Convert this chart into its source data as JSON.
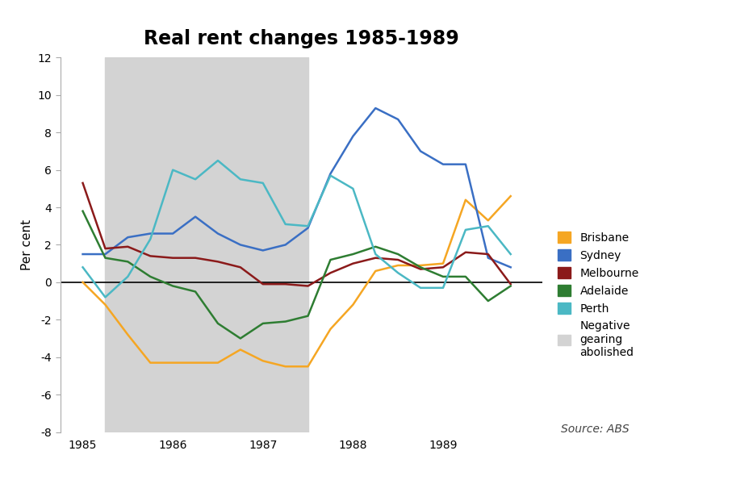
{
  "title": "Real rent changes 1985-1989",
  "ylabel": "Per cent",
  "source": "Source: ABS",
  "ylim": [
    -8,
    12
  ],
  "xlim": [
    1984.75,
    1990.1
  ],
  "shading_xmin": 1985.25,
  "shading_xmax": 1987.5,
  "series": {
    "Brisbane": {
      "color": "#f5a623",
      "x": [
        1985.0,
        1985.25,
        1985.5,
        1985.75,
        1986.0,
        1986.25,
        1986.5,
        1986.75,
        1987.0,
        1987.25,
        1987.5,
        1987.75,
        1988.0,
        1988.25,
        1988.5,
        1988.75,
        1989.0,
        1989.25,
        1989.5,
        1989.75
      ],
      "y": [
        0.0,
        -1.2,
        -2.8,
        -4.3,
        -4.3,
        -4.3,
        -4.3,
        -3.6,
        -4.2,
        -4.5,
        -4.5,
        -2.5,
        -1.2,
        0.6,
        0.9,
        0.9,
        1.0,
        4.4,
        3.3,
        4.6
      ]
    },
    "Sydney": {
      "color": "#3a6fc4",
      "x": [
        1985.0,
        1985.25,
        1985.5,
        1985.75,
        1986.0,
        1986.25,
        1986.5,
        1986.75,
        1987.0,
        1987.25,
        1987.5,
        1987.75,
        1988.0,
        1988.25,
        1988.5,
        1988.75,
        1989.0,
        1989.25,
        1989.5,
        1989.75
      ],
      "y": [
        1.5,
        1.5,
        2.4,
        2.6,
        2.6,
        3.5,
        2.6,
        2.0,
        1.7,
        2.0,
        2.9,
        5.8,
        7.8,
        9.3,
        8.7,
        7.0,
        6.3,
        6.3,
        1.3,
        0.8
      ]
    },
    "Melbourne": {
      "color": "#8b1a1a",
      "x": [
        1985.0,
        1985.25,
        1985.5,
        1985.75,
        1986.0,
        1986.25,
        1986.5,
        1986.75,
        1987.0,
        1987.25,
        1987.5,
        1987.75,
        1988.0,
        1988.25,
        1988.5,
        1988.75,
        1989.0,
        1989.25,
        1989.5,
        1989.75
      ],
      "y": [
        5.3,
        1.8,
        1.9,
        1.4,
        1.3,
        1.3,
        1.1,
        0.8,
        -0.1,
        -0.1,
        -0.2,
        0.5,
        1.0,
        1.3,
        1.2,
        0.7,
        0.8,
        1.6,
        1.5,
        -0.1
      ]
    },
    "Adelaide": {
      "color": "#2e7d32",
      "x": [
        1985.0,
        1985.25,
        1985.5,
        1985.75,
        1986.0,
        1986.25,
        1986.5,
        1986.75,
        1987.0,
        1987.25,
        1987.5,
        1987.75,
        1988.0,
        1988.25,
        1988.5,
        1988.75,
        1989.0,
        1989.25,
        1989.5,
        1989.75
      ],
      "y": [
        3.8,
        1.3,
        1.1,
        0.3,
        -0.2,
        -0.5,
        -2.2,
        -3.0,
        -2.2,
        -2.1,
        -1.8,
        1.2,
        1.5,
        1.9,
        1.5,
        0.8,
        0.3,
        0.3,
        -1.0,
        -0.2
      ]
    },
    "Perth": {
      "color": "#4bb8c4",
      "x": [
        1985.0,
        1985.25,
        1985.5,
        1985.75,
        1986.0,
        1986.25,
        1986.5,
        1986.75,
        1987.0,
        1987.25,
        1987.5,
        1987.75,
        1988.0,
        1988.25,
        1988.5,
        1988.75,
        1989.0,
        1989.25,
        1989.5,
        1989.75
      ],
      "y": [
        0.8,
        -0.8,
        0.3,
        2.3,
        6.0,
        5.5,
        6.5,
        5.5,
        5.3,
        3.1,
        3.0,
        5.7,
        5.0,
        1.5,
        0.5,
        -0.3,
        -0.3,
        2.8,
        3.0,
        1.5
      ]
    }
  },
  "shading_color": "#d3d3d3",
  "background_color": "#ffffff",
  "zero_line_color": "#111111",
  "title_fontsize": 17,
  "axis_label_fontsize": 11,
  "tick_fontsize": 10,
  "legend_fontsize": 10,
  "source_fontsize": 10,
  "linewidth": 1.8
}
